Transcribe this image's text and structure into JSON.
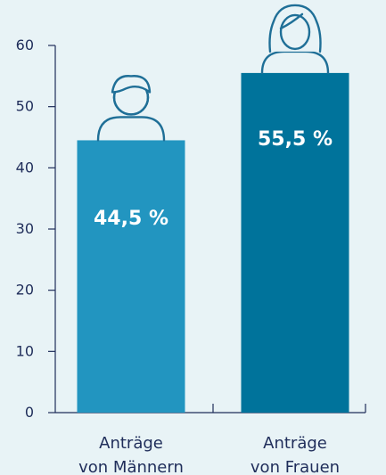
{
  "chart_data": {
    "type": "bar",
    "categories": [
      [
        "Anträge",
        "von Männern"
      ],
      [
        "Anträge",
        "von Frauen"
      ]
    ],
    "values": [
      44.5,
      55.5
    ],
    "value_labels": [
      "44,5 %",
      "55,5 %"
    ],
    "ylim": [
      0,
      60
    ],
    "yticks": [
      0,
      10,
      20,
      30,
      40,
      50,
      60
    ],
    "title": "",
    "xlabel": "",
    "ylabel": "",
    "grid": false,
    "colors": [
      "#2295c0",
      "#00739b"
    ],
    "icons": [
      "male-person-icon",
      "female-person-icon"
    ]
  },
  "colors": {
    "background": "#e8f3f6",
    "text": "#1f2d5a",
    "icon_stroke": "#1f6f97"
  }
}
